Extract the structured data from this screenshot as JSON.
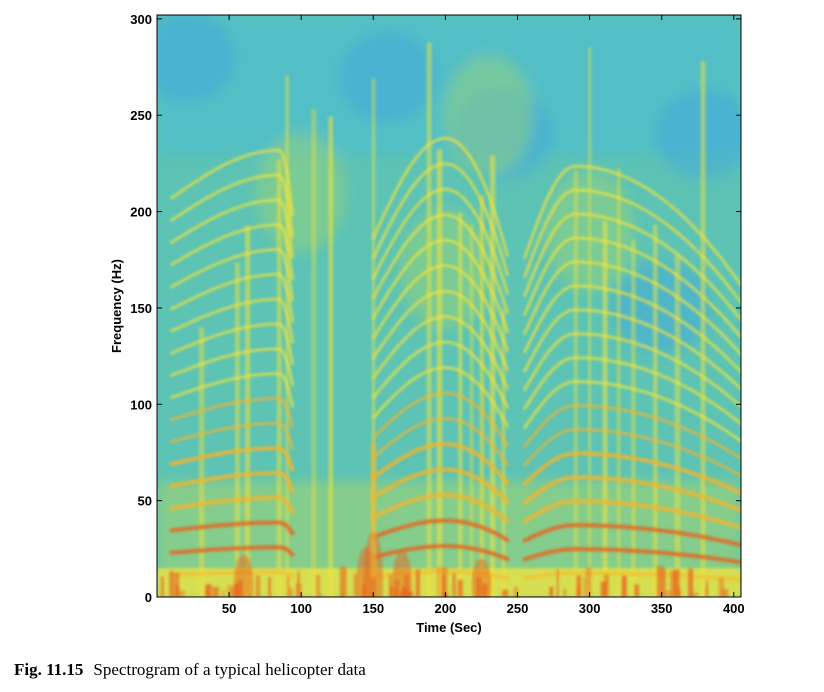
{
  "chart_data": {
    "type": "heatmap",
    "title": "",
    "xlabel": "Time (Sec)",
    "ylabel": "Frequency (Hz)",
    "xlim": [
      0,
      405
    ],
    "ylim": [
      0,
      302
    ],
    "xticks": [
      50,
      100,
      150,
      200,
      250,
      300,
      350,
      400
    ],
    "yticks": [
      0,
      50,
      100,
      150,
      200,
      250,
      300
    ],
    "colormap": [
      "#3ea6e0",
      "#4bbcd3",
      "#6dc8a6",
      "#a8d66a",
      "#f2e43c",
      "#f3b52f",
      "#e8641f"
    ],
    "harmonic_tracks": {
      "description_of_units": "frequency in Hz vs time in Sec",
      "fundamental_hz": 11.5,
      "harmonic_count": 18,
      "segments": [
        {
          "t_start": 10,
          "t_end": 95,
          "freq_scale_start": 1.0,
          "freq_scale_peak": 1.12,
          "t_peak": 85
        },
        {
          "t_start": 150,
          "t_end": 245,
          "freq_scale_start": 0.9,
          "freq_scale_peak": 1.15,
          "t_peak": 200
        },
        {
          "t_start": 255,
          "t_end": 405,
          "freq_scale_start": 0.85,
          "freq_scale_peak": 1.08,
          "t_peak": 290
        }
      ]
    },
    "low_frequency_energy_hz": [
      0,
      15
    ]
  },
  "caption": {
    "number": "Fig. 11.15",
    "text": "Spectrogram of a typical helicopter data"
  }
}
